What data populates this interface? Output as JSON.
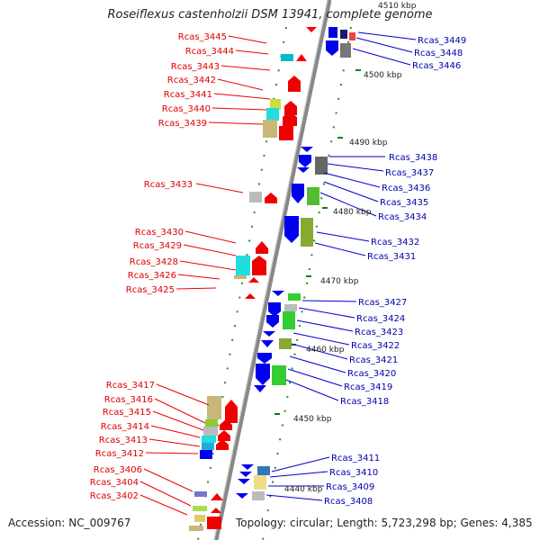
{
  "header": {
    "title": "Roseiflexus castenholzii DSM 13941, complete genome",
    "top_cut_label": "4510 kbp"
  },
  "footer": {
    "accession": "Accession: NC_009767",
    "topology": "Topology: circular; Length: 5,723,298 bp; Genes: 4,385"
  },
  "colors": {
    "reverse_strand_label": "#dd0000",
    "forward_strand_label": "#0000aa",
    "backbone": "#888888",
    "tick": "#008800"
  },
  "scale_labels": [
    "4500 kbp",
    "4490 kbp",
    "4480 kbp",
    "4470 kbp",
    "4460 kbp",
    "4450 kbp",
    "4440 kbp"
  ],
  "genes_left": [
    "Rcas_3445",
    "Rcas_3444",
    "Rcas_3443",
    "Rcas_3442",
    "Rcas_3441",
    "Rcas_3440",
    "Rcas_3439",
    "Rcas_3433",
    "Rcas_3430",
    "Rcas_3429",
    "Rcas_3428",
    "Rcas_3426",
    "Rcas_3425",
    "Rcas_3417",
    "Rcas_3416",
    "Rcas_3415",
    "Rcas_3414",
    "Rcas_3413",
    "Rcas_3412",
    "Rcas_3406",
    "Rcas_3404",
    "Rcas_3402"
  ],
  "genes_right": [
    "Rcas_3449",
    "Rcas_3448",
    "Rcas_3446",
    "Rcas_3438",
    "Rcas_3437",
    "Rcas_3436",
    "Rcas_3435",
    "Rcas_3434",
    "Rcas_3432",
    "Rcas_3431",
    "Rcas_3427",
    "Rcas_3424",
    "Rcas_3423",
    "Rcas_3422",
    "Rcas_3421",
    "Rcas_3420",
    "Rcas_3419",
    "Rcas_3418",
    "Rcas_3411",
    "Rcas_3410",
    "Rcas_3409",
    "Rcas_3408"
  ]
}
